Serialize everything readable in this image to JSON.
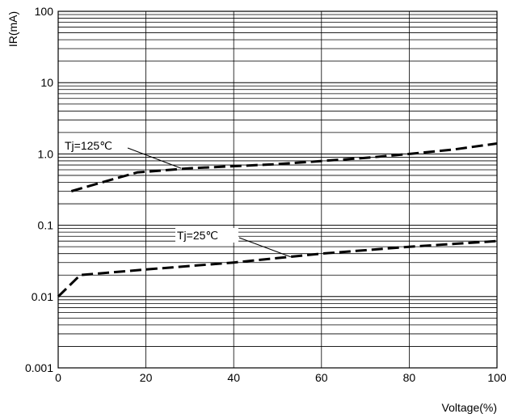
{
  "chart_data": {
    "type": "line",
    "title": "",
    "xlabel": "Voltage(%)",
    "ylabel": "IR(mA)",
    "xlim": [
      0,
      100
    ],
    "ylim": [
      0.001,
      100
    ],
    "y_scale": "log",
    "grid": true,
    "x_ticks": [
      "0",
      "20",
      "40",
      "60",
      "80",
      "100"
    ],
    "y_ticks": [
      "0.001",
      "0.01",
      "0.1",
      "1.0",
      "10",
      "100"
    ],
    "series": [
      {
        "name": "Tj=125℃",
        "line_style": "dashed",
        "x": [
          3,
          10,
          18,
          30,
          50,
          70,
          80,
          90,
          100
        ],
        "y": [
          0.3,
          0.4,
          0.55,
          0.63,
          0.72,
          0.88,
          1.0,
          1.15,
          1.4
        ]
      },
      {
        "name": "Tj=25℃",
        "line_style": "dashed",
        "x": [
          0,
          5,
          20,
          40,
          60,
          80,
          100
        ],
        "y": [
          0.01,
          0.02,
          0.024,
          0.03,
          0.04,
          0.05,
          0.06
        ]
      }
    ],
    "annotations": [
      "Tj=125℃",
      "Tj=25℃"
    ]
  }
}
